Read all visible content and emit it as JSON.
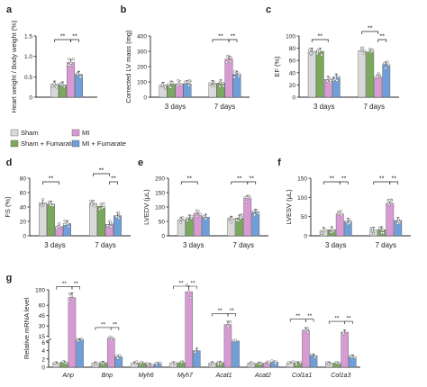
{
  "colors": {
    "sham": "#d9d9d9",
    "sham_fumarate": "#7aa85c",
    "mi": "#d79ad3",
    "mi_fumarate": "#6f9fd8",
    "axis": "#222222",
    "point_edge": "#666666"
  },
  "legend": {
    "items": [
      {
        "label": "Sham",
        "color_key": "sham"
      },
      {
        "label": "MI",
        "color_key": "mi"
      },
      {
        "label": "Sham + Fumarate",
        "color_key": "sham_fumarate"
      },
      {
        "label": "MI + Fumarate",
        "color_key": "mi_fumarate"
      }
    ]
  },
  "chart_data": [
    {
      "panel": "a",
      "type": "bar",
      "ylabel": "Heart weight / Body weight (%)",
      "ylim": [
        0,
        1.5
      ],
      "yticks": [
        "0",
        "0.5",
        "1.0",
        "1.5"
      ],
      "groups": [
        ""
      ],
      "series": [
        {
          "name": "Sham",
          "values": [
            0.32
          ]
        },
        {
          "name": "Sham + Fumarate",
          "values": [
            0.3
          ]
        },
        {
          "name": "MI",
          "values": [
            0.85
          ]
        },
        {
          "name": "MI + Fumarate",
          "values": [
            0.56
          ]
        }
      ],
      "significance": [
        "**",
        "**"
      ]
    },
    {
      "panel": "b",
      "type": "bar",
      "ylabel": "Corrected LV mass (mg)",
      "ylim": [
        0,
        400
      ],
      "yticks": [
        "0",
        "100",
        "200",
        "300",
        "400"
      ],
      "groups": [
        "3 days",
        "7 days"
      ],
      "series": [
        {
          "name": "Sham",
          "values": [
            78,
            88
          ]
        },
        {
          "name": "Sham + Fumarate",
          "values": [
            85,
            93
          ]
        },
        {
          "name": "MI",
          "values": [
            88,
            250
          ]
        },
        {
          "name": "MI + Fumarate",
          "values": [
            88,
            150
          ]
        }
      ],
      "significance": [
        "**",
        "**"
      ]
    },
    {
      "panel": "c",
      "type": "bar",
      "ylabel": "EF (%)",
      "ylim": [
        0,
        100
      ],
      "yticks": [
        "0",
        "20",
        "40",
        "60",
        "80",
        "100"
      ],
      "groups": [
        "3 days",
        "7 days"
      ],
      "series": [
        {
          "name": "Sham",
          "values": [
            75,
            76
          ]
        },
        {
          "name": "Sham + Fumarate",
          "values": [
            75,
            74
          ]
        },
        {
          "name": "MI",
          "values": [
            29,
            33
          ]
        },
        {
          "name": "MI + Fumarate",
          "values": [
            33,
            53
          ]
        }
      ],
      "significance": [
        "**",
        "**",
        "**"
      ]
    },
    {
      "panel": "d",
      "type": "bar",
      "ylabel": "FS (%)",
      "ylim": [
        0,
        80
      ],
      "yticks": [
        "0",
        "20",
        "40",
        "60",
        "80"
      ],
      "groups": [
        "3 days",
        "7 days"
      ],
      "series": [
        {
          "name": "Sham",
          "values": [
            46,
            45
          ]
        },
        {
          "name": "Sham + Fumarate",
          "values": [
            44,
            41
          ]
        },
        {
          "name": "MI",
          "values": [
            13,
            16
          ]
        },
        {
          "name": "MI + Fumarate",
          "values": [
            17,
            28
          ]
        }
      ],
      "significance": [
        "**",
        "**",
        "**"
      ]
    },
    {
      "panel": "e",
      "type": "bar",
      "ylabel": "LVEDV (μL)",
      "ylim": [
        0,
        200
      ],
      "yticks": [
        "0",
        "50",
        "100",
        "150",
        "200"
      ],
      "groups": [
        "3 days",
        "7 days"
      ],
      "series": [
        {
          "name": "Sham",
          "values": [
            55,
            58
          ]
        },
        {
          "name": "Sham + Fumarate",
          "values": [
            62,
            62
          ]
        },
        {
          "name": "MI",
          "values": [
            78,
            130
          ]
        },
        {
          "name": "MI + Fumarate",
          "values": [
            65,
            82
          ]
        }
      ],
      "significance": [
        "**",
        "**",
        "**"
      ]
    },
    {
      "panel": "f",
      "type": "bar",
      "ylabel": "LVESV (μL)",
      "ylim": [
        0,
        150
      ],
      "yticks": [
        "0",
        "50",
        "100",
        "150"
      ],
      "groups": [
        "3 days",
        "7 days"
      ],
      "series": [
        {
          "name": "Sham",
          "values": [
            14,
            15
          ]
        },
        {
          "name": "Sham + Fumarate",
          "values": [
            16,
            16
          ]
        },
        {
          "name": "MI",
          "values": [
            57,
            85
          ]
        },
        {
          "name": "MI + Fumarate",
          "values": [
            38,
            40
          ]
        }
      ],
      "significance": [
        "**",
        "**",
        "**",
        "**"
      ]
    },
    {
      "panel": "g",
      "type": "bar",
      "ylabel": "Relative mRNA level",
      "yaxis_break": true,
      "yticks": [
        "0",
        "2",
        "4",
        "6",
        "15",
        "30",
        "45",
        "60",
        "100"
      ],
      "groups": [
        "Anp",
        "Bnp",
        "Myh6",
        "Myh7",
        "Acat1",
        "Acat2",
        "Col1a1",
        "Col1a3"
      ],
      "series": [
        {
          "name": "Sham",
          "values": [
            1,
            1,
            1,
            1,
            1,
            1,
            1,
            1
          ]
        },
        {
          "name": "Sham + Fumarate",
          "values": [
            1.2,
            1.1,
            1.0,
            1.1,
            1.1,
            0.9,
            1.0,
            1.0
          ]
        },
        {
          "name": "MI",
          "values": [
            80,
            12,
            0.6,
            95,
            32,
            1.0,
            24,
            21
          ]
        },
        {
          "name": "MI + Fumarate",
          "values": [
            10,
            2.5,
            0.8,
            4,
            8,
            1.2,
            2.8,
            2.6
          ]
        }
      ],
      "significance_groups": [
        "Anp",
        "Bnp",
        "Myh7",
        "Acat1",
        "Col1a1",
        "Col1a3"
      ],
      "significance": [
        "**",
        "**"
      ]
    }
  ]
}
